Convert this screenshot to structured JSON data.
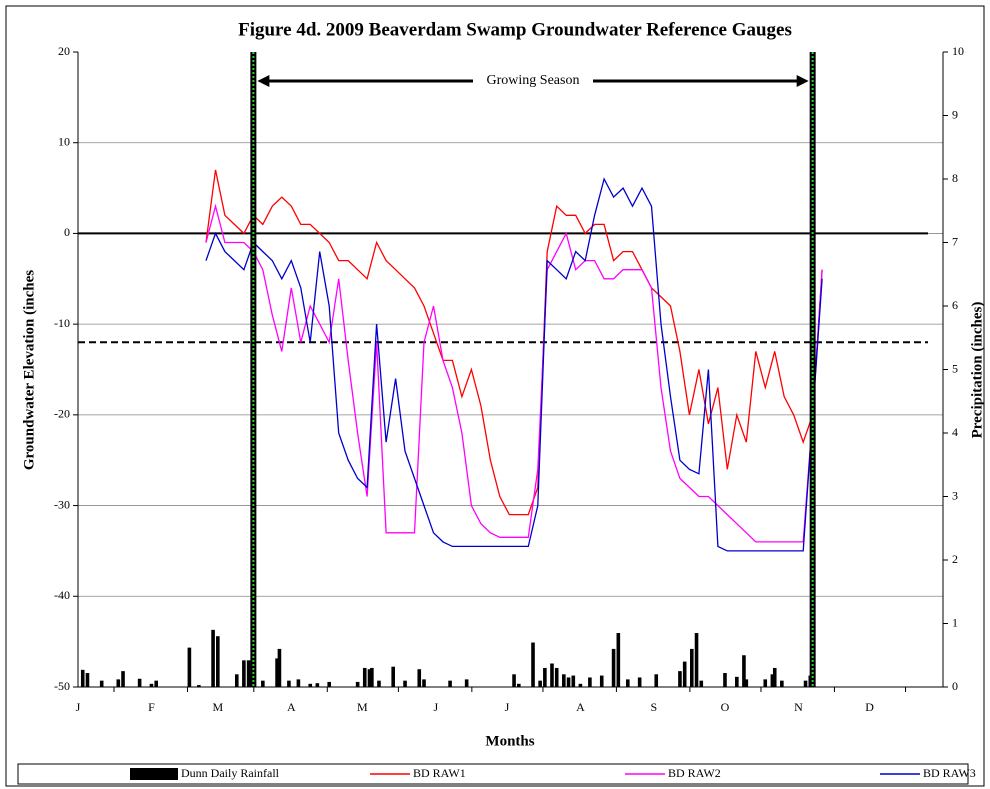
{
  "chart_data": {
    "type": "line",
    "title": "Figure 4d. 2009 Beaverdam Swamp Groundwater Reference Gauges",
    "x_label": "Months",
    "y_label": "Groundwater Elevation (inches",
    "y2_label": "Precipitation (inches)",
    "xlim": [
      0,
      365
    ],
    "xticks": [
      {
        "value": 0,
        "label": "J"
      },
      {
        "value": 31,
        "label": "F"
      },
      {
        "value": 59,
        "label": "M"
      },
      {
        "value": 90,
        "label": "A"
      },
      {
        "value": 120,
        "label": "M"
      },
      {
        "value": 151,
        "label": "J"
      },
      {
        "value": 181,
        "label": "J"
      },
      {
        "value": 212,
        "label": "A"
      },
      {
        "value": 243,
        "label": "S"
      },
      {
        "value": 273,
        "label": "O"
      },
      {
        "value": 304,
        "label": "N"
      },
      {
        "value": 334,
        "label": "D"
      }
    ],
    "ylim": [
      -50,
      20
    ],
    "yticks": [
      -50,
      -40,
      -30,
      -20,
      -10,
      0,
      10,
      20
    ],
    "y2lim": [
      0,
      10
    ],
    "y2ticks": [
      0,
      1,
      2,
      3,
      4,
      5,
      6,
      7,
      8,
      9,
      10
    ],
    "grid": true,
    "hlines": [
      {
        "value": 0,
        "style": "solid"
      },
      {
        "value": -12,
        "style": "dashed"
      }
    ],
    "vlines": [
      74,
      310
    ],
    "annotation": {
      "text": "Growing Season",
      "x": [
        74,
        310
      ]
    },
    "x": [
      54,
      58,
      62,
      66,
      70,
      74,
      78,
      82,
      86,
      90,
      94,
      98,
      102,
      106,
      110,
      114,
      118,
      122,
      126,
      130,
      134,
      138,
      142,
      146,
      150,
      154,
      158,
      162,
      166,
      170,
      174,
      178,
      182,
      186,
      190,
      194,
      198,
      202,
      206,
      210,
      214,
      218,
      222,
      226,
      230,
      234,
      238,
      242,
      246,
      250,
      254,
      258,
      262,
      266,
      270,
      274,
      278,
      282,
      286,
      290,
      294,
      298,
      302,
      306,
      310,
      314
    ],
    "rainfall": {
      "name": "Dunn Daily Rainfall",
      "color": "#000000",
      "axis": "y2",
      "type": "bar",
      "x": [
        2,
        4,
        10,
        17,
        19,
        26,
        31,
        33,
        47,
        51,
        57,
        59,
        67,
        70,
        72,
        73,
        78,
        84,
        85,
        89,
        93,
        98,
        101,
        106,
        118,
        121,
        123,
        124,
        127,
        133,
        138,
        144,
        146,
        157,
        164,
        184,
        186,
        192,
        195,
        197,
        200,
        202,
        205,
        207,
        209,
        212,
        216,
        221,
        226,
        228,
        232,
        237,
        244,
        254,
        256,
        259,
        261,
        263,
        273,
        278,
        281,
        282,
        290,
        293,
        294,
        297,
        307,
        309
      ],
      "values": [
        0.27,
        0.22,
        0.1,
        0.12,
        0.25,
        0.13,
        0.05,
        0.1,
        0.62,
        0.03,
        0.9,
        0.8,
        0.2,
        0.42,
        0.42,
        0.2,
        0.1,
        0.45,
        0.6,
        0.1,
        0.12,
        0.05,
        0.06,
        0.08,
        0.08,
        0.3,
        0.28,
        0.3,
        0.1,
        0.32,
        0.1,
        0.28,
        0.12,
        0.1,
        0.12,
        0.2,
        0.05,
        0.7,
        0.1,
        0.3,
        0.37,
        0.3,
        0.2,
        0.15,
        0.18,
        0.05,
        0.15,
        0.18,
        0.6,
        0.85,
        0.12,
        0.15,
        0.2,
        0.25,
        0.4,
        0.6,
        0.85,
        0.1,
        0.22,
        0.16,
        0.5,
        0.12,
        0.12,
        0.2,
        0.3,
        0.1,
        0.1,
        0.18
      ]
    },
    "series": [
      {
        "name": "BD RAW1",
        "color": "#ff0000",
        "values": [
          -1,
          7,
          2,
          1,
          0,
          2,
          1,
          3,
          4,
          3,
          1,
          1,
          0,
          -1,
          -3,
          -3,
          -4,
          -5,
          -1,
          -3,
          -4,
          -5,
          -6,
          -8,
          -11,
          -14,
          -14,
          -18,
          -15,
          -19,
          -25,
          -29,
          -31,
          -31,
          -31,
          -28,
          -2,
          3,
          2,
          2,
          0,
          1,
          1,
          -3,
          -2,
          -2,
          -4,
          -6,
          -7,
          -8,
          -13,
          -20,
          -15,
          -21,
          -17,
          -26,
          -20,
          -23,
          -13,
          -17,
          -13,
          -18,
          -20,
          -23,
          -20,
          -4
        ]
      },
      {
        "name": "BD RAW2",
        "color": "#ff00ff",
        "values": [
          -1,
          3,
          -1,
          -1,
          -1,
          -2,
          -4,
          -9,
          -13,
          -6,
          -12,
          -8,
          -10,
          -12,
          -5,
          -14,
          -22,
          -29,
          -12,
          -33,
          -33,
          -33,
          -33,
          -12,
          -8,
          -14,
          -17,
          -22,
          -30,
          -32,
          -33,
          -33.5,
          -33.5,
          -33.5,
          -33.5,
          -26,
          -4,
          -2,
          0,
          -4,
          -3,
          -3,
          -5,
          -5,
          -4,
          -4,
          -4,
          -6,
          -17,
          -24,
          -27,
          -28,
          -29,
          -29,
          -30,
          -31,
          -32,
          -33,
          -34,
          -34,
          -34,
          -34,
          -34,
          -34,
          -20,
          -4
        ]
      },
      {
        "name": "BD RAW3",
        "color": "#0000cc",
        "values": [
          -3,
          0,
          -2,
          -3,
          -4,
          -1,
          -2,
          -3,
          -5,
          -3,
          -6,
          -12,
          -2,
          -8,
          -22,
          -25,
          -27,
          -28,
          -10,
          -23,
          -16,
          -24,
          -27,
          -30,
          -33,
          -34,
          -34.5,
          -34.5,
          -34.5,
          -34.5,
          -34.5,
          -34.5,
          -34.5,
          -34.5,
          -34.5,
          -30,
          -3,
          -4,
          -5,
          -2,
          -3,
          2,
          6,
          4,
          5,
          3,
          5,
          3,
          -10,
          -18,
          -25,
          -26,
          -26.5,
          -15,
          -34.5,
          -35,
          -35,
          -35,
          -35,
          -35,
          -35,
          -35,
          -35,
          -35,
          -20,
          -5
        ]
      }
    ]
  }
}
